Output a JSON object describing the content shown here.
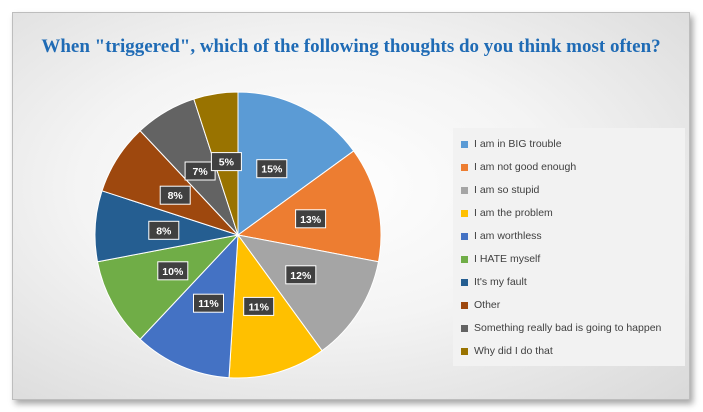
{
  "chart_data": {
    "type": "pie",
    "title": "When \"triggered\", which of the following thoughts do you think most often?",
    "categories": [
      "I am in BIG trouble",
      "I am not good enough",
      "I am so stupid",
      "I am the problem",
      "I am worthless",
      "I HATE myself",
      "It's my fault",
      "Other",
      "Something really bad is going to happen",
      "Why did I do that"
    ],
    "values": [
      15,
      13,
      12,
      11,
      11,
      10,
      8,
      8,
      7,
      5
    ],
    "data_labels": [
      "15%",
      "13%",
      "12%",
      "11%",
      "11%",
      "10%",
      "8%",
      "8%",
      "7%",
      "5%"
    ],
    "colors": [
      "#5b9bd5",
      "#ed7d31",
      "#a5a5a5",
      "#ffc000",
      "#4472c4",
      "#70ad47",
      "#255e91",
      "#9e480e",
      "#636363",
      "#997300"
    ],
    "legend_position": "right"
  }
}
